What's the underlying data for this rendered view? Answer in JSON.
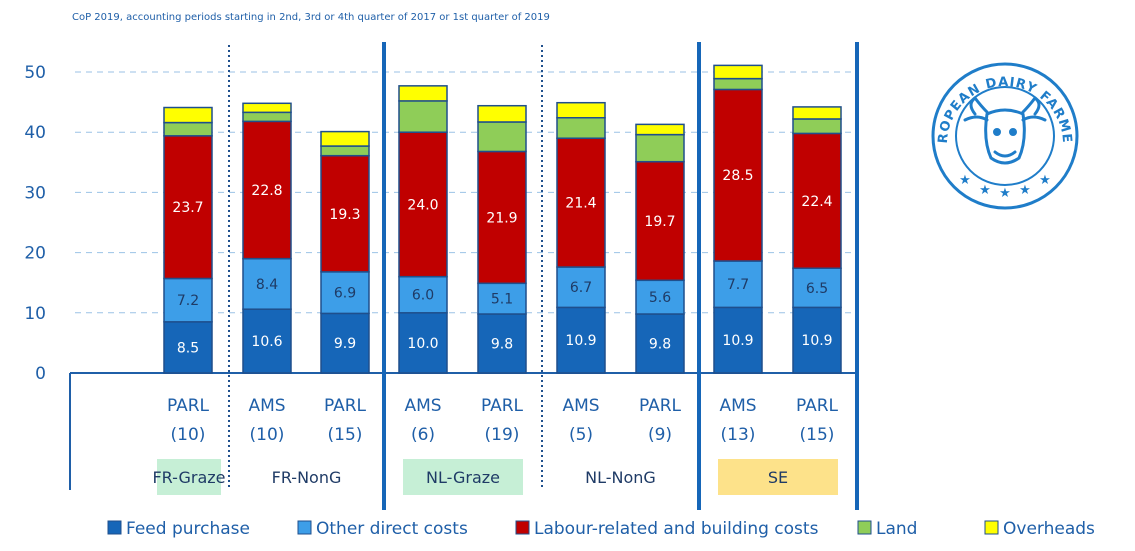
{
  "chart_data": {
    "type": "bar",
    "stacked": true,
    "subtitle": "CoP 2019, accounting periods starting in 2nd, 3rd or 4th quarter of 2017 or 1st quarter of 2019",
    "ylim": [
      0,
      50
    ],
    "yticks": [
      "0",
      "10",
      "20",
      "30",
      "40",
      "50"
    ],
    "grid": true,
    "legend_position": "bottom",
    "groups": [
      {
        "label": "FR-Graze",
        "highlight": "#c6efd6",
        "size": 1
      },
      {
        "label": "FR-NonG",
        "highlight": "",
        "size": 2
      },
      {
        "label": "NL-Graze",
        "highlight": "#c6efd6",
        "size": 2
      },
      {
        "label": "NL-NonG",
        "highlight": "",
        "size": 2
      },
      {
        "label": "SE",
        "highlight": "#fde28a",
        "size": 2
      }
    ],
    "categories": [
      {
        "label": "PARL",
        "n": "(10)"
      },
      {
        "label": "AMS",
        "n": "(10)"
      },
      {
        "label": "PARL",
        "n": "(15)"
      },
      {
        "label": "AMS",
        "n": "(6)"
      },
      {
        "label": "PARL",
        "n": "(19)"
      },
      {
        "label": "AMS",
        "n": "(5)"
      },
      {
        "label": "PARL",
        "n": "(9)"
      },
      {
        "label": "AMS",
        "n": "(13)"
      },
      {
        "label": "PARL",
        "n": "(15)"
      }
    ],
    "series": [
      {
        "name": "Feed purchase",
        "color": "#1666b8",
        "text_color": "#ffffff",
        "show_labels": true,
        "values": [
          8.5,
          10.6,
          9.9,
          10.0,
          9.8,
          10.9,
          9.8,
          10.9,
          10.9
        ]
      },
      {
        "name": "Other direct costs",
        "color": "#3d9ee8",
        "text_color": "#1f3b66",
        "show_labels": true,
        "values": [
          7.2,
          8.4,
          6.9,
          6.0,
          5.1,
          6.7,
          5.6,
          7.7,
          6.5
        ]
      },
      {
        "name": "Labour-related and building costs",
        "color": "#c00000",
        "text_color": "#ffffff",
        "show_labels": true,
        "values": [
          23.7,
          22.8,
          19.3,
          24.0,
          21.9,
          21.4,
          19.7,
          28.5,
          22.4
        ]
      },
      {
        "name": "Land",
        "color": "#8fcd58",
        "text_color": "#1f3b66",
        "show_labels": false,
        "values": [
          2.2,
          1.5,
          1.6,
          5.2,
          4.9,
          3.4,
          4.5,
          1.8,
          2.4
        ]
      },
      {
        "name": "Overheads",
        "color": "#ffff00",
        "text_color": "#1f3b66",
        "show_labels": false,
        "values": [
          2.5,
          1.5,
          2.4,
          2.5,
          2.7,
          2.5,
          1.7,
          2.2,
          2.0
        ]
      }
    ]
  },
  "logo": {
    "text": "EUROPEAN DAIRY FARMERS",
    "icon": "cow-head-icon",
    "color": "#1f7dc9"
  }
}
